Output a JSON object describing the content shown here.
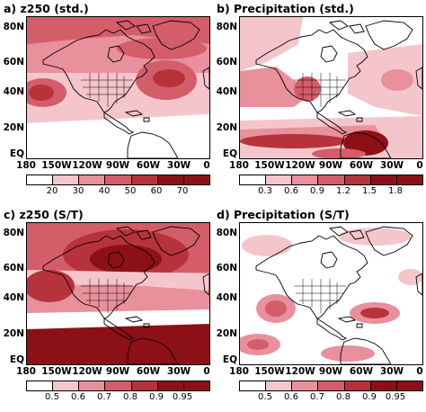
{
  "palette": [
    "#ffffff",
    "#f4c6cb",
    "#e8909b",
    "#d45d6a",
    "#b7333c",
    "#8c1116"
  ],
  "yaxis": [
    "80N",
    "60N",
    "40N",
    "20N",
    "EQ"
  ],
  "xaxis": [
    "180",
    "150W",
    "120W",
    "90W",
    "60W",
    "30W",
    "0"
  ],
  "panels": [
    {
      "id": "a",
      "title": "a) z250 (std.)",
      "colorbar": [
        "20",
        "30",
        "40",
        "50",
        "60",
        "70"
      ]
    },
    {
      "id": "b",
      "title": "b) Precipitation (std.)",
      "colorbar": [
        "0.3",
        "0.6",
        "0.9",
        "1.2",
        "1.5",
        "1.8"
      ]
    },
    {
      "id": "c",
      "title": "c) z250 (S/T)",
      "colorbar": [
        "0.5",
        "0.6",
        "0.7",
        "0.8",
        "0.9",
        "0.95"
      ]
    },
    {
      "id": "d",
      "title": "d) Precipitation (S/T)",
      "colorbar": [
        "0.5",
        "0.6",
        "0.7",
        "0.8",
        "0.9",
        "0.95"
      ]
    }
  ]
}
